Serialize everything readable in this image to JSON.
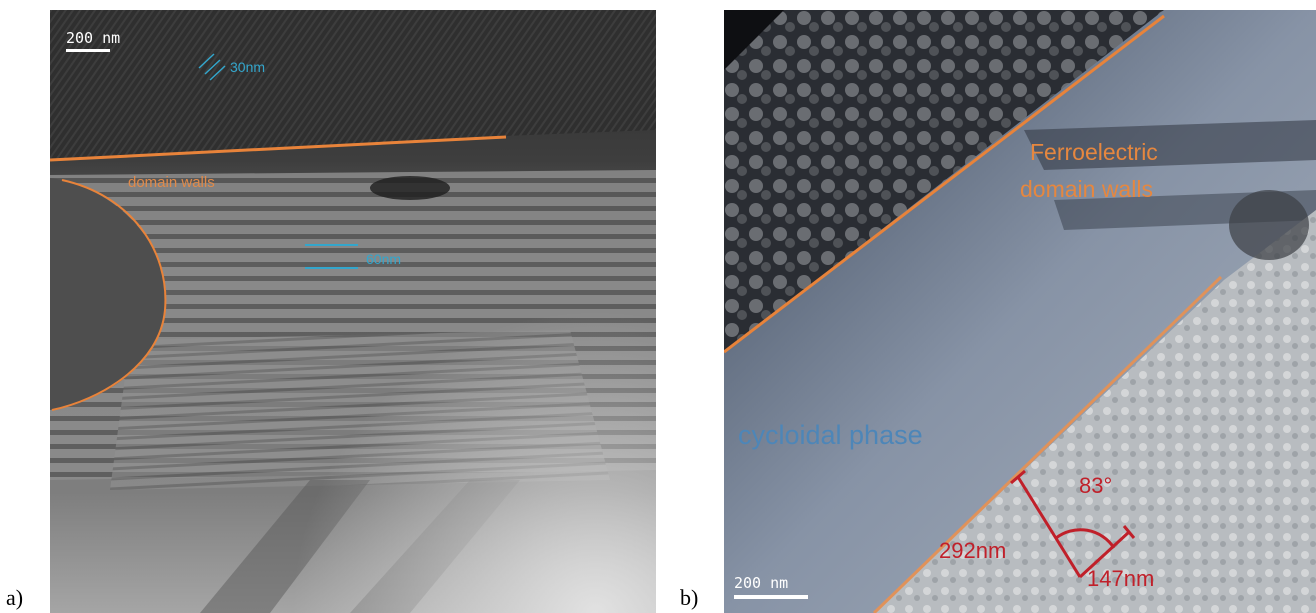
{
  "figure": {
    "panel_a": {
      "label": "a)",
      "scale_bar": "200  nm",
      "annotations": {
        "period_small": "30nm",
        "period_large": "60nm",
        "walls": "domain walls"
      }
    },
    "panel_b": {
      "label": "b)",
      "scale_bar": "200  nm",
      "annotations": {
        "walls_line1": "Ferroelectric",
        "walls_line2": "domain walls",
        "phase": "cycloidal phase",
        "angle": "83°",
        "length_1": "292nm",
        "length_2": "147nm"
      }
    },
    "colors": {
      "orange_line": "#e8833a",
      "blue_marker": "#33a6cc",
      "red_marker": "#c0202a"
    }
  }
}
